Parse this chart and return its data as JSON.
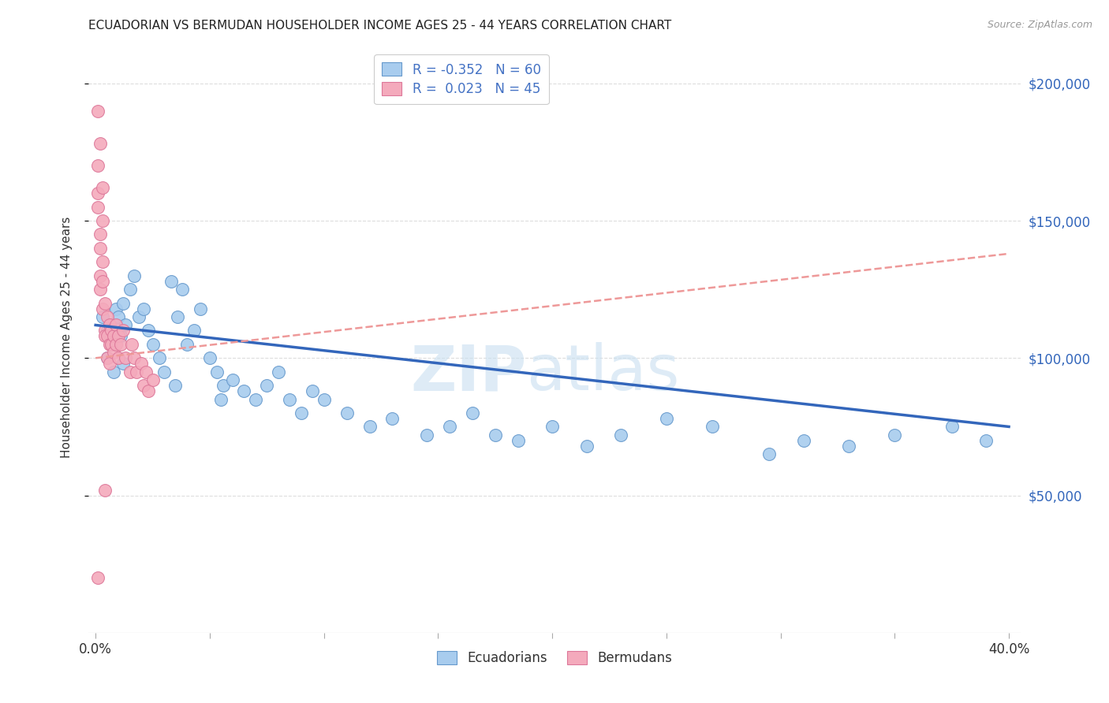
{
  "title": "ECUADORIAN VS BERMUDAN HOUSEHOLDER INCOME AGES 25 - 44 YEARS CORRELATION CHART",
  "source": "Source: ZipAtlas.com",
  "ylabel": "Householder Income Ages 25 - 44 years",
  "ytick_labels": [
    "$50,000",
    "$100,000",
    "$150,000",
    "$200,000"
  ],
  "ytick_values": [
    50000,
    100000,
    150000,
    200000
  ],
  "ylim": [
    0,
    215000
  ],
  "xlim": [
    -0.003,
    0.405
  ],
  "color_blue": "#A8CCEE",
  "color_pink": "#F4AABC",
  "color_blue_edge": "#6699CC",
  "color_pink_edge": "#DD7799",
  "color_line_blue": "#3366BB",
  "color_line_pink": "#EE9999",
  "watermark_color": "#C8DFF0",
  "background_color": "#FFFFFF",
  "grid_color": "#DDDDDD",
  "ecuadorians_x": [
    0.003,
    0.005,
    0.006,
    0.007,
    0.008,
    0.009,
    0.01,
    0.011,
    0.012,
    0.013,
    0.015,
    0.017,
    0.019,
    0.021,
    0.023,
    0.025,
    0.028,
    0.03,
    0.033,
    0.036,
    0.038,
    0.04,
    0.043,
    0.046,
    0.05,
    0.053,
    0.056,
    0.06,
    0.065,
    0.07,
    0.075,
    0.08,
    0.085,
    0.09,
    0.095,
    0.1,
    0.11,
    0.12,
    0.13,
    0.145,
    0.155,
    0.165,
    0.175,
    0.185,
    0.2,
    0.215,
    0.23,
    0.25,
    0.27,
    0.295,
    0.31,
    0.33,
    0.35,
    0.375,
    0.39,
    0.005,
    0.008,
    0.012,
    0.035,
    0.055
  ],
  "ecuadorians_y": [
    115000,
    110000,
    108000,
    105000,
    112000,
    118000,
    115000,
    108000,
    120000,
    112000,
    125000,
    130000,
    115000,
    118000,
    110000,
    105000,
    100000,
    95000,
    128000,
    115000,
    125000,
    105000,
    110000,
    118000,
    100000,
    95000,
    90000,
    92000,
    88000,
    85000,
    90000,
    95000,
    85000,
    80000,
    88000,
    85000,
    80000,
    75000,
    78000,
    72000,
    75000,
    80000,
    72000,
    70000,
    75000,
    68000,
    72000,
    78000,
    75000,
    65000,
    70000,
    68000,
    72000,
    75000,
    70000,
    100000,
    95000,
    98000,
    90000,
    85000
  ],
  "bermudans_x": [
    0.001,
    0.001,
    0.001,
    0.002,
    0.002,
    0.002,
    0.002,
    0.003,
    0.003,
    0.003,
    0.003,
    0.004,
    0.004,
    0.004,
    0.005,
    0.005,
    0.005,
    0.006,
    0.006,
    0.006,
    0.007,
    0.007,
    0.008,
    0.008,
    0.009,
    0.009,
    0.01,
    0.01,
    0.011,
    0.012,
    0.013,
    0.015,
    0.016,
    0.017,
    0.018,
    0.02,
    0.021,
    0.022,
    0.023,
    0.025,
    0.001,
    0.002,
    0.003,
    0.004,
    0.001
  ],
  "bermudans_y": [
    170000,
    160000,
    155000,
    145000,
    140000,
    130000,
    125000,
    135000,
    128000,
    150000,
    118000,
    120000,
    110000,
    108000,
    115000,
    108000,
    100000,
    112000,
    105000,
    98000,
    110000,
    105000,
    108000,
    102000,
    112000,
    105000,
    108000,
    100000,
    105000,
    110000,
    100000,
    95000,
    105000,
    100000,
    95000,
    98000,
    90000,
    95000,
    88000,
    92000,
    190000,
    178000,
    162000,
    52000,
    20000
  ],
  "trendline_blue_x0": 0.0,
  "trendline_blue_y0": 112000,
  "trendline_blue_x1": 0.4,
  "trendline_blue_y1": 75000,
  "trendline_pink_x0": 0.0,
  "trendline_pink_y0": 100000,
  "trendline_pink_x1": 0.4,
  "trendline_pink_y1": 138000
}
